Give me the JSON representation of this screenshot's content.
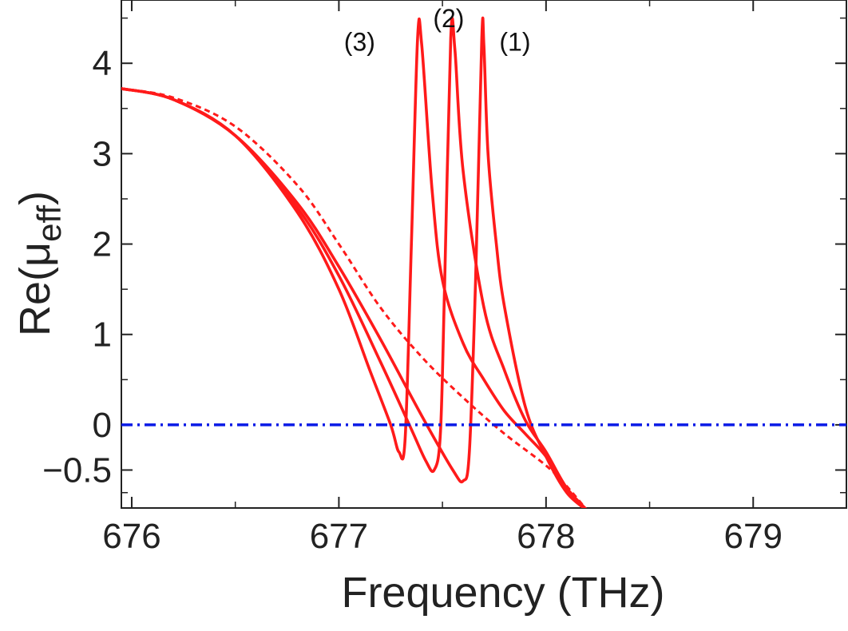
{
  "chart_data": {
    "type": "line",
    "title": "",
    "xlabel": "Frequency (THz)",
    "ylabel": "Re(μeff)",
    "ylabel_base": "Re(μ",
    "ylabel_sub": "eff",
    "ylabel_close": ")",
    "xlim": [
      675.95,
      679.45
    ],
    "ylim": [
      -0.92,
      4.7
    ],
    "xticks": [
      676,
      677,
      678,
      679
    ],
    "xtick_labels": [
      "676",
      "677",
      "678",
      "679"
    ],
    "xtick_minor": [
      676.5,
      677.5,
      678.5,
      679.5
    ],
    "yticks": [
      -0.5,
      0,
      1,
      2,
      3,
      4
    ],
    "ytick_labels": [
      "−0.5",
      "0",
      "1",
      "2",
      "3",
      "4"
    ],
    "ytick_minor": [
      -0.75,
      0.5,
      1.5,
      2.5,
      3.5,
      4.5
    ],
    "grid": false,
    "colors": {
      "curves": "#ff1a1a",
      "reference": "#0a1ae6",
      "axes": "#222222"
    },
    "series": [
      {
        "name": "(1)",
        "style": "solid",
        "x": [
          675.95,
          676.2,
          676.5,
          676.8,
          677.0,
          677.2,
          677.4,
          677.55,
          677.6,
          677.63,
          677.66,
          677.69,
          677.7,
          677.72,
          677.76,
          677.8,
          677.9,
          678.0,
          678.1,
          678.2
        ],
        "y": [
          3.72,
          3.6,
          3.2,
          2.45,
          1.75,
          0.95,
          0.1,
          -0.5,
          -0.62,
          -0.3,
          1.6,
          4.28,
          4.2,
          3.0,
          2.0,
          1.3,
          0.2,
          -0.35,
          -0.75,
          -0.95
        ]
      },
      {
        "name": "(2)",
        "style": "solid",
        "x": [
          675.95,
          676.2,
          676.5,
          676.8,
          677.0,
          677.2,
          677.35,
          677.42,
          677.46,
          677.49,
          677.51,
          677.54,
          677.56,
          677.6,
          677.7,
          677.8,
          677.9,
          678.0,
          678.1,
          678.2
        ],
        "y": [
          3.72,
          3.6,
          3.2,
          2.4,
          1.65,
          0.7,
          -0.05,
          -0.4,
          -0.5,
          -0.1,
          1.5,
          4.28,
          4.15,
          2.8,
          1.3,
          0.6,
          0.05,
          -0.3,
          -0.7,
          -0.95
        ]
      },
      {
        "name": "(3)",
        "style": "solid",
        "x": [
          675.95,
          676.2,
          676.5,
          676.8,
          677.0,
          677.15,
          677.25,
          677.29,
          677.32,
          677.35,
          677.38,
          677.4,
          677.45,
          677.5,
          677.6,
          677.7,
          677.8,
          677.9,
          678.0,
          678.1,
          678.2
        ],
        "y": [
          3.72,
          3.6,
          3.2,
          2.35,
          1.5,
          0.6,
          0.0,
          -0.3,
          -0.15,
          2.0,
          4.28,
          4.2,
          2.6,
          1.6,
          0.9,
          0.5,
          0.15,
          -0.1,
          -0.35,
          -0.7,
          -0.95
        ]
      },
      {
        "name": "reference",
        "style": "dashed",
        "x": [
          675.95,
          676.2,
          676.5,
          676.8,
          677.0,
          677.2,
          677.4,
          677.6,
          677.8,
          678.0,
          678.1,
          678.2
        ],
        "y": [
          3.72,
          3.62,
          3.3,
          2.65,
          2.0,
          1.3,
          0.75,
          0.3,
          -0.1,
          -0.45,
          -0.68,
          -0.95
        ]
      },
      {
        "name": "zero line",
        "style": "dashdot",
        "x": [
          675.95,
          679.45
        ],
        "y": [
          0,
          0
        ]
      }
    ],
    "annotations": [
      {
        "text": "(3)",
        "x": 677.1,
        "y": 4.14
      },
      {
        "text": "(2)",
        "x": 677.53,
        "y": 4.4
      },
      {
        "text": "(1)",
        "x": 677.85,
        "y": 4.14
      }
    ]
  }
}
